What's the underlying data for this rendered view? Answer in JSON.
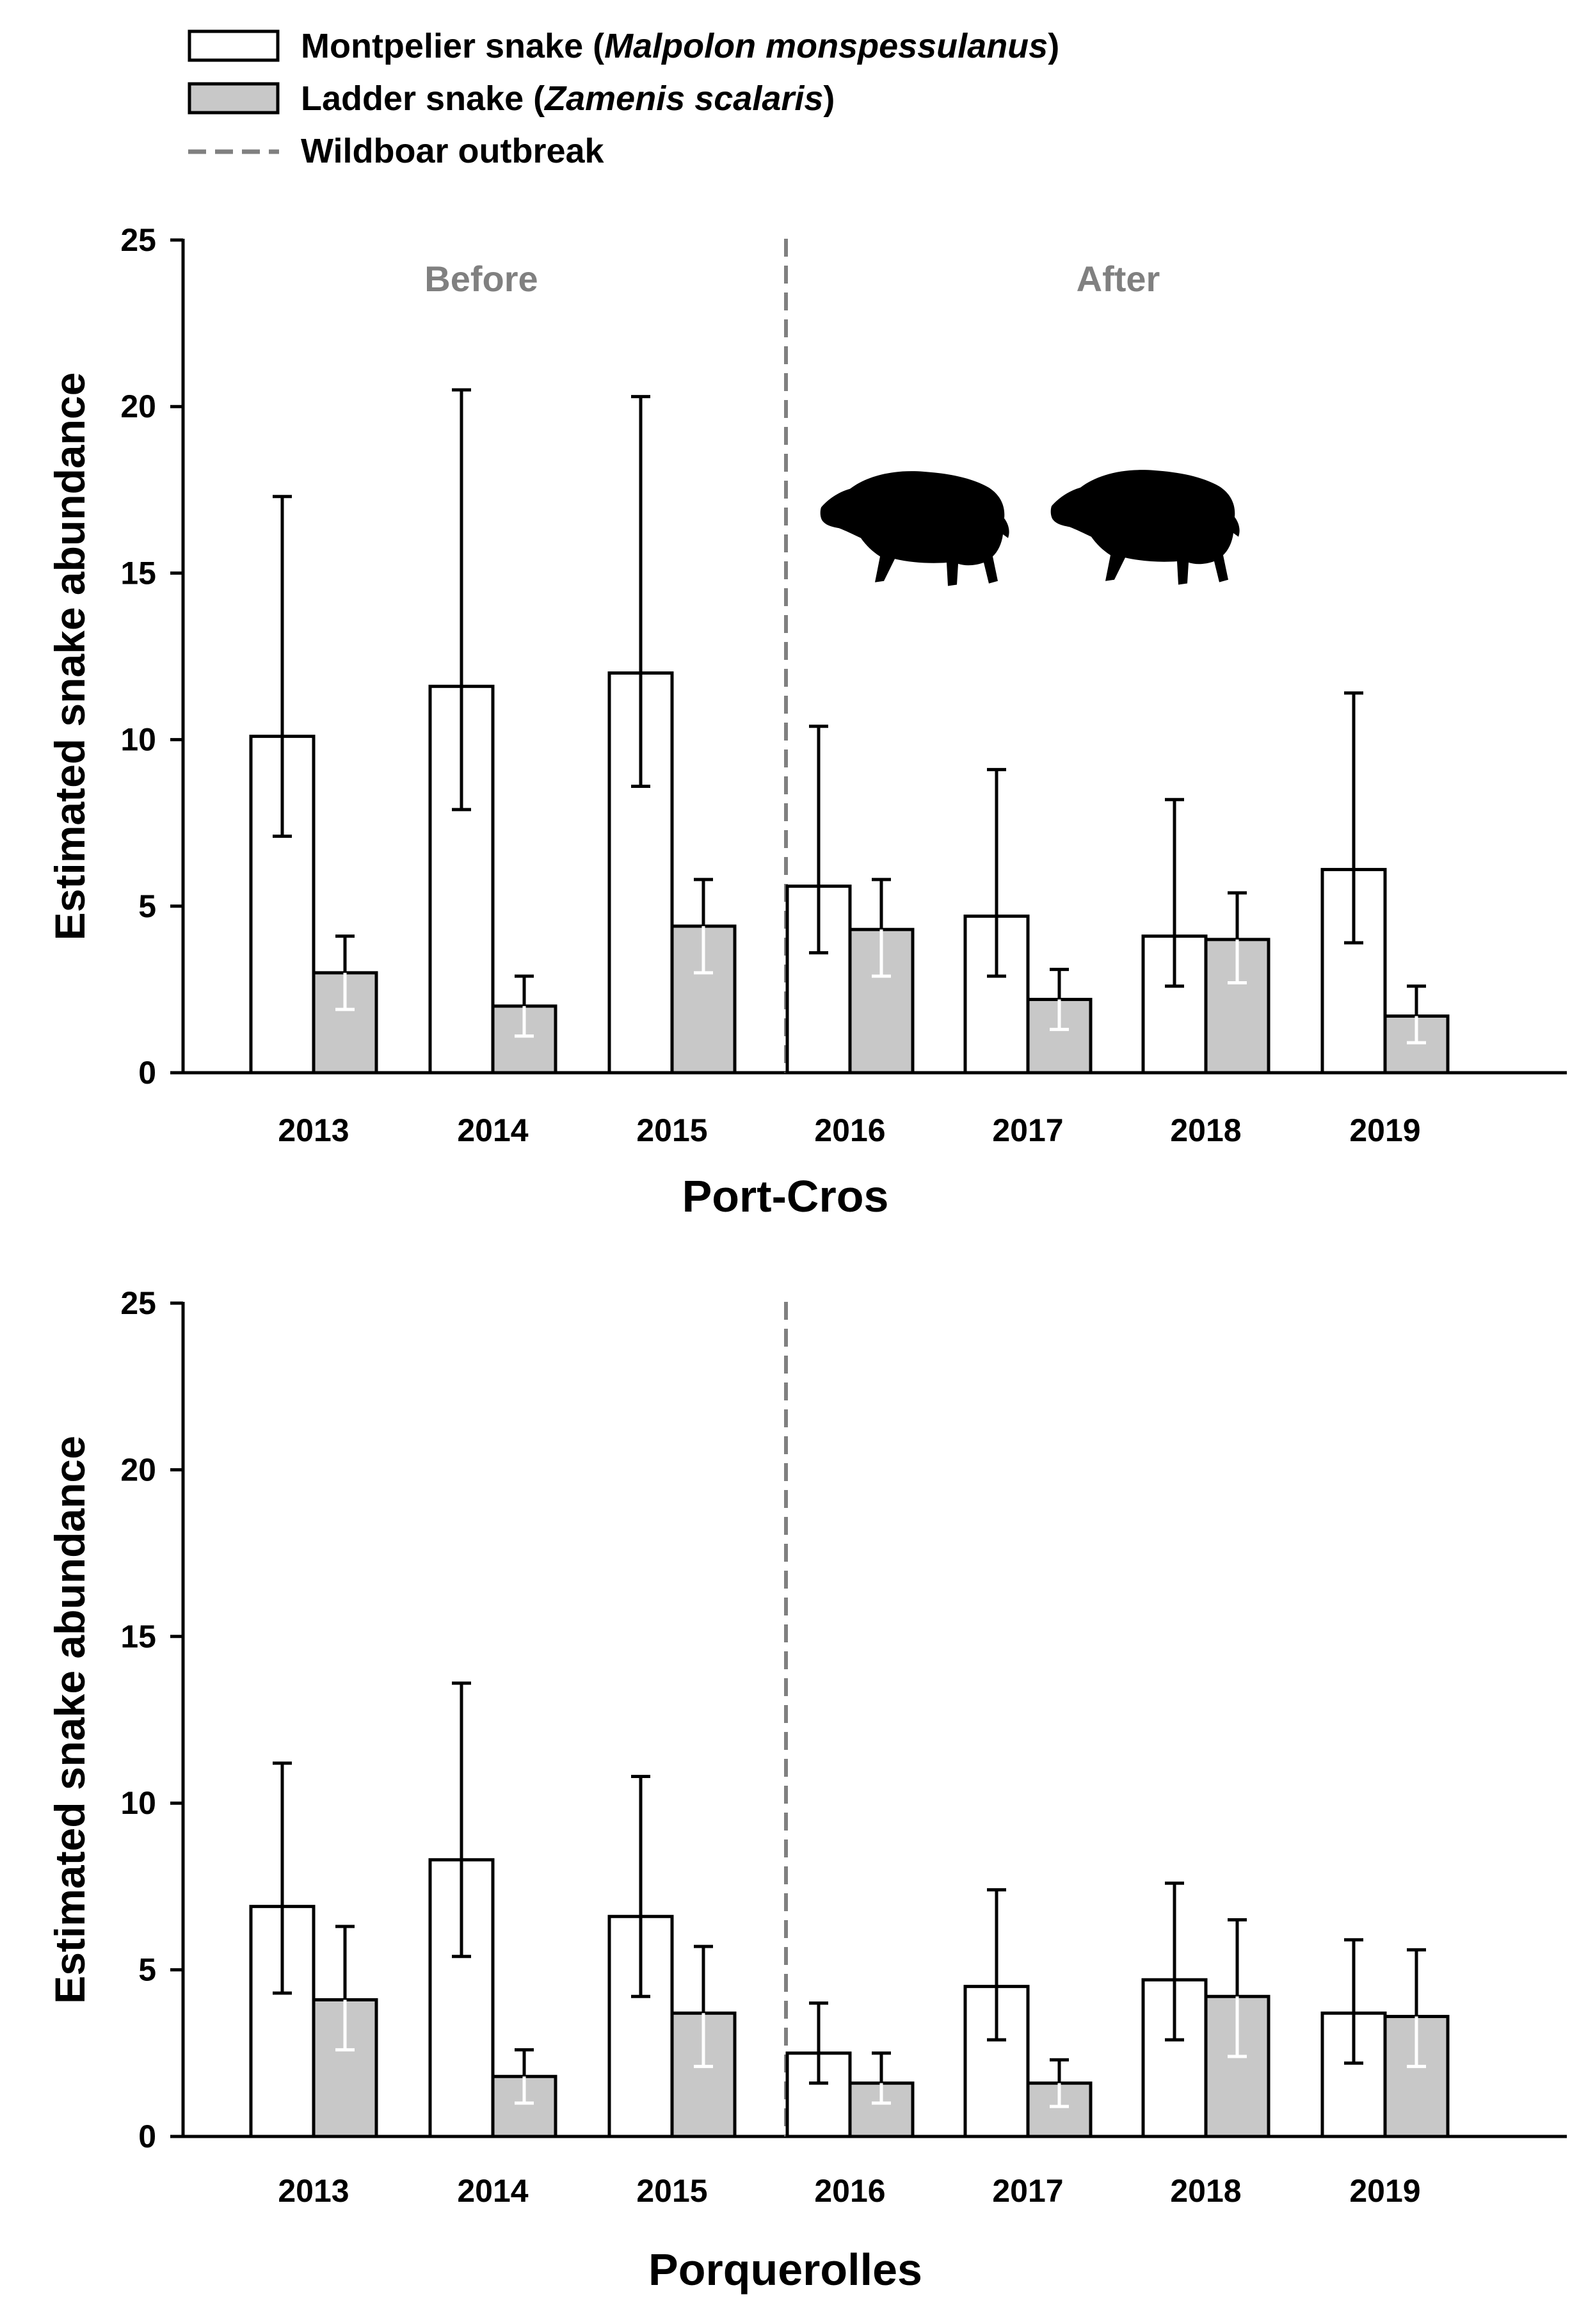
{
  "legend": {
    "montpelier": {
      "name": "Montpelier snake (",
      "latin": "Malpolon monspessulanus",
      "close": ")"
    },
    "ladder": {
      "name": "Ladder snake (",
      "latin": "Zamenis scalaris",
      "close": ")"
    },
    "outbreak": "Wildboar outbreak"
  },
  "colors": {
    "montpelier_fill": "#ffffff",
    "ladder_fill": "#c8c8c8",
    "outbreak_line": "#808080",
    "period_text": "#808080"
  },
  "icons": [
    "wild-boar-icon",
    "wild-boar-icon"
  ],
  "chart_data": [
    {
      "type": "bar",
      "title": "Port-Cros",
      "xlabel": "Port-Cros",
      "ylabel": "Estimated snake abundance",
      "ylim": [
        0,
        25
      ],
      "yticks": [
        "0",
        "5",
        "10",
        "15",
        "20",
        "25"
      ],
      "categories": [
        "2013",
        "2014",
        "2015",
        "2016",
        "2017",
        "2018",
        "2019"
      ],
      "outbreak_after": "2015",
      "periods": {
        "before": "Before",
        "after": "After"
      },
      "series": [
        {
          "name": "Montpelier snake (Malpolon monspessulanus)",
          "values": [
            10.1,
            11.6,
            12.0,
            5.6,
            4.7,
            4.1,
            6.1
          ],
          "lower": [
            7.1,
            7.9,
            8.6,
            3.6,
            2.9,
            2.6,
            3.9
          ],
          "upper": [
            17.3,
            20.5,
            20.3,
            10.4,
            9.1,
            8.2,
            11.4
          ]
        },
        {
          "name": "Ladder snake (Zamenis scalaris)",
          "values": [
            3.0,
            2.0,
            4.4,
            4.3,
            2.2,
            4.0,
            1.7
          ],
          "lower": [
            1.9,
            1.1,
            3.0,
            2.9,
            1.3,
            2.7,
            0.9
          ],
          "upper": [
            4.1,
            2.9,
            5.8,
            5.8,
            3.1,
            5.4,
            2.6
          ]
        }
      ]
    },
    {
      "type": "bar",
      "title": "Porquerolles",
      "xlabel": "Porquerolles",
      "ylabel": "Estimated snake abundance",
      "ylim": [
        0,
        25
      ],
      "yticks": [
        "0",
        "5",
        "10",
        "15",
        "20",
        "25"
      ],
      "categories": [
        "2013",
        "2014",
        "2015",
        "2016",
        "2017",
        "2018",
        "2019"
      ],
      "outbreak_after": "2015",
      "series": [
        {
          "name": "Montpelier snake (Malpolon monspessulanus)",
          "values": [
            6.9,
            8.3,
            6.6,
            2.5,
            4.5,
            4.7,
            3.7
          ],
          "lower": [
            4.3,
            5.4,
            4.2,
            1.6,
            2.9,
            2.9,
            2.2
          ],
          "upper": [
            11.2,
            13.6,
            10.8,
            4.0,
            7.4,
            7.6,
            5.9
          ]
        },
        {
          "name": "Ladder snake (Zamenis scalaris)",
          "values": [
            4.1,
            1.8,
            3.7,
            1.6,
            1.6,
            4.2,
            3.6
          ],
          "lower": [
            2.6,
            1.0,
            2.1,
            1.0,
            0.9,
            2.4,
            2.1
          ],
          "upper": [
            6.3,
            2.6,
            5.7,
            2.5,
            2.3,
            6.5,
            5.6
          ]
        }
      ]
    }
  ]
}
